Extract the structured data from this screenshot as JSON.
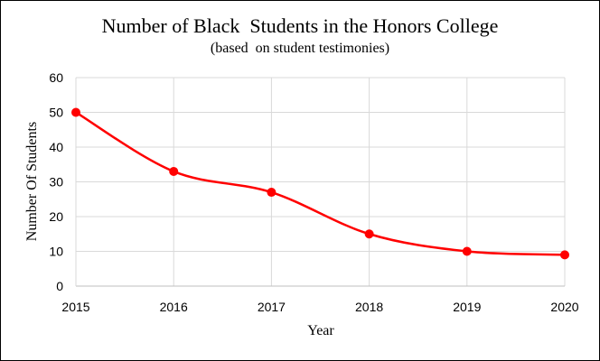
{
  "chart_data": {
    "type": "line",
    "title": "Number of Black  Students in the Honors College",
    "subtitle": "(based  on student testimonies)",
    "xlabel": "Year",
    "ylabel": "Number Of Students",
    "x": [
      2015,
      2016,
      2017,
      2018,
      2019,
      2020
    ],
    "series": [
      {
        "values": [
          50,
          33,
          27,
          15,
          10,
          9
        ]
      }
    ],
    "xlim": [
      2015,
      2020
    ],
    "ylim": [
      0,
      60
    ],
    "yticks": [
      0,
      10,
      20,
      30,
      40,
      50,
      60
    ],
    "xticks": [
      2015,
      2016,
      2017,
      2018,
      2019,
      2020
    ],
    "grid": "vertical and horizontal",
    "line_style": "smoothed",
    "legend": "none",
    "colors": {
      "series": "#ff0000",
      "grid": "#d9d9d9",
      "axis": "#bfbfbf"
    }
  }
}
